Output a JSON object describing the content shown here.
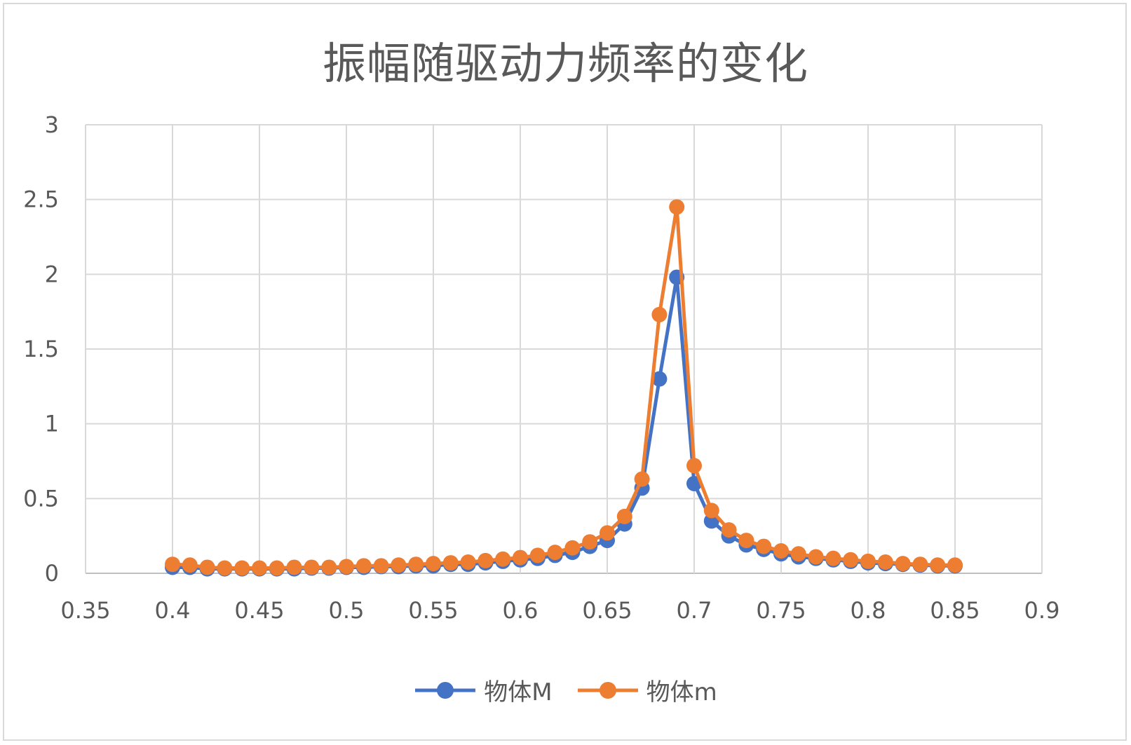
{
  "chart_data": {
    "type": "line",
    "title": "振幅随驱动力频率的变化",
    "xlabel": "",
    "ylabel": "",
    "xlim": [
      0.35,
      0.9
    ],
    "ylim": [
      0,
      3
    ],
    "x_ticks": [
      "0.35",
      "0.4",
      "0.45",
      "0.5",
      "0.55",
      "0.6",
      "0.65",
      "0.7",
      "0.75",
      "0.8",
      "0.85",
      "0.9"
    ],
    "y_ticks": [
      "0",
      "0.5",
      "1",
      "1.5",
      "2",
      "2.5",
      "3"
    ],
    "grid": true,
    "legend_position": "bottom",
    "x": [
      0.4,
      0.41,
      0.42,
      0.43,
      0.44,
      0.45,
      0.46,
      0.47,
      0.48,
      0.49,
      0.5,
      0.51,
      0.52,
      0.53,
      0.54,
      0.55,
      0.56,
      0.57,
      0.58,
      0.59,
      0.6,
      0.61,
      0.62,
      0.63,
      0.64,
      0.65,
      0.66,
      0.67,
      0.68,
      0.69,
      0.7,
      0.71,
      0.72,
      0.73,
      0.74,
      0.75,
      0.76,
      0.77,
      0.78,
      0.79,
      0.8,
      0.81,
      0.82,
      0.83,
      0.84,
      0.85
    ],
    "series": [
      {
        "name": "物体M",
        "color": "#4472C4",
        "values": [
          0.04,
          0.04,
          0.03,
          0.03,
          0.03,
          0.03,
          0.03,
          0.03,
          0.035,
          0.035,
          0.04,
          0.04,
          0.045,
          0.045,
          0.05,
          0.05,
          0.06,
          0.06,
          0.07,
          0.08,
          0.09,
          0.1,
          0.12,
          0.14,
          0.18,
          0.22,
          0.33,
          0.57,
          1.3,
          1.98,
          0.6,
          0.35,
          0.25,
          0.19,
          0.16,
          0.13,
          0.11,
          0.1,
          0.09,
          0.08,
          0.07,
          0.065,
          0.06,
          0.055,
          0.05,
          0.05
        ]
      },
      {
        "name": "物体m",
        "color": "#ED7D31",
        "values": [
          0.06,
          0.055,
          0.04,
          0.035,
          0.035,
          0.035,
          0.035,
          0.04,
          0.04,
          0.04,
          0.045,
          0.05,
          0.05,
          0.055,
          0.06,
          0.065,
          0.07,
          0.075,
          0.085,
          0.095,
          0.105,
          0.12,
          0.14,
          0.17,
          0.21,
          0.27,
          0.38,
          0.63,
          1.73,
          2.45,
          0.72,
          0.42,
          0.29,
          0.22,
          0.18,
          0.15,
          0.13,
          0.11,
          0.1,
          0.09,
          0.08,
          0.075,
          0.065,
          0.06,
          0.055,
          0.055
        ]
      }
    ]
  }
}
